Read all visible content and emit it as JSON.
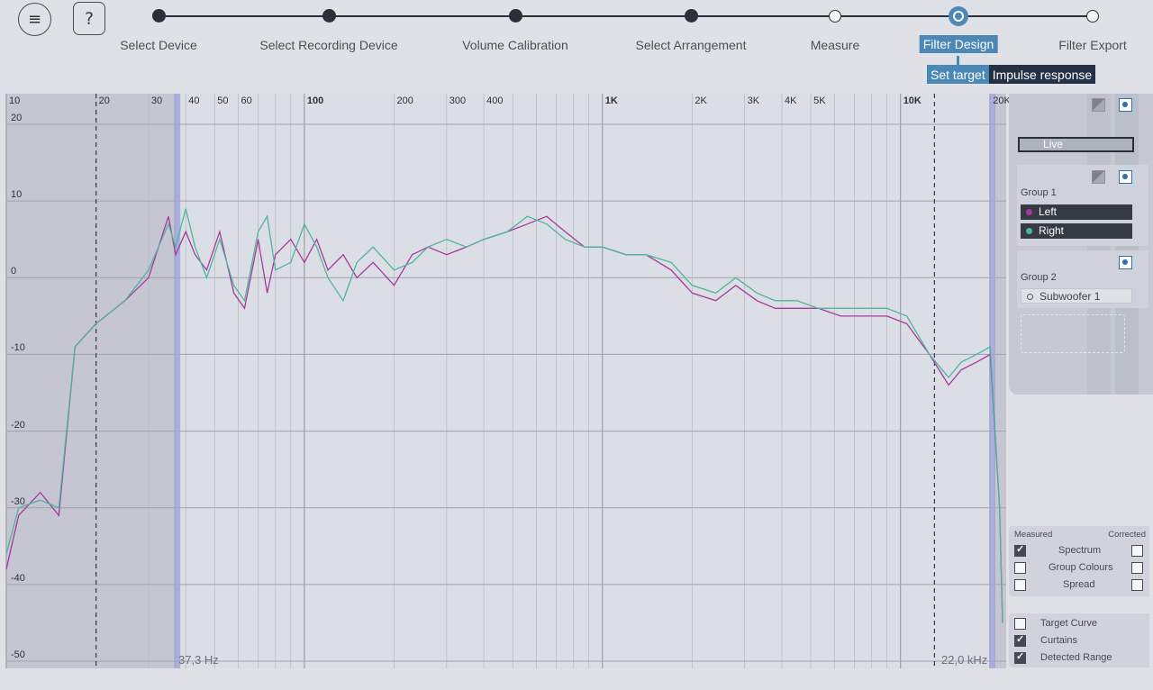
{
  "toolbar": {
    "menu_icon": "hamburger-menu-icon",
    "help_label": "?"
  },
  "steps": [
    {
      "label": "Select Device",
      "state": "done"
    },
    {
      "label": "Select Recording Device",
      "state": "done"
    },
    {
      "label": "Volume Calibration",
      "state": "done"
    },
    {
      "label": "Select Arrangement",
      "state": "done"
    },
    {
      "label": "Measure",
      "state": "open"
    },
    {
      "label": "Filter Design",
      "state": "current"
    },
    {
      "label": "Filter Export",
      "state": "open"
    }
  ],
  "subtabs": [
    "Set target",
    "Impulse response"
  ],
  "plot": {
    "y_ticks": [
      "20",
      "10",
      "0",
      "-10",
      "-20",
      "-30",
      "-40",
      "-50"
    ],
    "x_ticks": [
      "10",
      "20",
      "30",
      "40",
      "50",
      "60",
      "100",
      "200",
      "300",
      "400",
      "1K",
      "2K",
      "3K",
      "4K",
      "5K",
      "10K",
      "20K"
    ],
    "range_low_label": "37,3 Hz",
    "range_high_label": "22,0 kHz"
  },
  "chart_data": {
    "type": "line",
    "xscale": "log",
    "xlim": [
      10,
      22000
    ],
    "ylim": [
      -50,
      20
    ],
    "series": [
      {
        "name": "Left",
        "color": "#a8399b",
        "x": [
          10,
          11,
          13,
          15,
          17,
          20,
          25,
          30,
          35,
          37,
          40,
          43,
          47,
          52,
          58,
          63,
          70,
          75,
          80,
          90,
          100,
          110,
          120,
          135,
          150,
          170,
          200,
          230,
          260,
          300,
          350,
          400,
          480,
          560,
          650,
          750,
          870,
          1000,
          1200,
          1400,
          1700,
          2000,
          2400,
          2800,
          3300,
          3800,
          4500,
          5300,
          6300,
          7500,
          9000,
          10500,
          12500,
          14500,
          16000,
          18000,
          20000,
          21500,
          22000
        ],
        "y": [
          -38,
          -31,
          -28,
          -31,
          -9,
          -6,
          -3,
          0,
          8,
          3,
          6,
          3,
          1,
          6,
          -2,
          -4,
          5,
          -2,
          3,
          5,
          2,
          5,
          1,
          3,
          0,
          2,
          -1,
          3,
          4,
          3,
          4,
          5,
          6,
          7,
          8,
          6,
          4,
          4,
          3,
          3,
          1,
          -2,
          -3,
          -1,
          -3,
          -4,
          -4,
          -4,
          -5,
          -5,
          -5,
          -6,
          -10,
          -14,
          -12,
          -11,
          -10,
          -30,
          -45
        ]
      },
      {
        "name": "Right",
        "color": "#4fb59c",
        "x": [
          10,
          11,
          13,
          15,
          17,
          20,
          25,
          30,
          35,
          37,
          40,
          43,
          47,
          52,
          58,
          63,
          70,
          75,
          80,
          90,
          100,
          110,
          120,
          135,
          150,
          170,
          200,
          230,
          260,
          300,
          350,
          400,
          480,
          560,
          650,
          750,
          870,
          1000,
          1200,
          1400,
          1700,
          2000,
          2400,
          2800,
          3300,
          3800,
          4500,
          5300,
          6300,
          7500,
          9000,
          10500,
          12500,
          14500,
          16000,
          18000,
          20000,
          21500,
          22000
        ],
        "y": [
          -36,
          -30,
          -29,
          -30,
          -9,
          -6,
          -3,
          1,
          7,
          4,
          9,
          4,
          0,
          5,
          -1,
          -3,
          6,
          8,
          1,
          2,
          7,
          4,
          0,
          -3,
          2,
          4,
          1,
          2,
          4,
          5,
          4,
          5,
          6,
          8,
          7,
          5,
          4,
          4,
          3,
          3,
          2,
          -1,
          -2,
          0,
          -2,
          -3,
          -3,
          -4,
          -4,
          -4,
          -4,
          -5,
          -10,
          -13,
          -11,
          -10,
          -9,
          -30,
          -45
        ]
      }
    ]
  },
  "side": {
    "live_label": "Live",
    "groups": [
      {
        "title": "Group 1",
        "channels": [
          {
            "label": "Left",
            "color": "#a8399b"
          },
          {
            "label": "Right",
            "color": "#4fb59c"
          }
        ]
      },
      {
        "title": "Group 2",
        "channels": [
          {
            "label": "Subwoofer 1",
            "color": "#555a66"
          }
        ]
      }
    ]
  },
  "options": {
    "measured_header": "Measured",
    "corrected_header": "Corrected",
    "rows": [
      {
        "label": "Spectrum",
        "measured": true,
        "corrected": false
      },
      {
        "label": "Group Colours",
        "measured": false,
        "corrected": false
      },
      {
        "label": "Spread",
        "measured": false,
        "corrected": false
      }
    ],
    "extra": [
      {
        "label": "Target Curve",
        "checked": false
      },
      {
        "label": "Curtains",
        "checked": true
      },
      {
        "label": "Detected Range",
        "checked": true
      }
    ]
  }
}
